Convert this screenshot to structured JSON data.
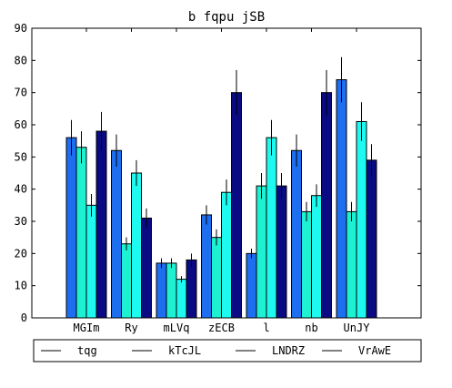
{
  "chart_data": {
    "type": "bar",
    "title": "b fqpu jSB",
    "xlabel": "",
    "ylabel": "",
    "ylim": [
      0,
      90
    ],
    "yticks": [
      0,
      10,
      20,
      30,
      40,
      50,
      60,
      70,
      80,
      90
    ],
    "categories": [
      "MGIm",
      "Ry",
      "mLVq",
      "zECB",
      "l",
      "nb",
      "UnJY"
    ],
    "series": [
      {
        "name": "tqg",
        "color": "#1e6ef0",
        "values": [
          56,
          52,
          17,
          32,
          20,
          52,
          74
        ],
        "errors": [
          5.5,
          5,
          1.5,
          3,
          1.5,
          5,
          7
        ]
      },
      {
        "name": "kTcJL",
        "color": "#1ef0d2",
        "values": [
          53,
          23,
          17,
          25,
          41,
          33,
          33
        ],
        "errors": [
          5,
          2,
          1.5,
          2.5,
          4,
          3,
          3
        ]
      },
      {
        "name": "LNDRZ",
        "color": "#1efaf0",
        "values": [
          35,
          45,
          12,
          39,
          56,
          38,
          61
        ],
        "errors": [
          3.5,
          4,
          1,
          4,
          5.5,
          3.5,
          6
        ]
      },
      {
        "name": "VrAwE",
        "color": "#0a0a82",
        "values": [
          58,
          31,
          18,
          70,
          41,
          70,
          49
        ],
        "errors": [
          6,
          3,
          2,
          7,
          4,
          7,
          5
        ]
      }
    ],
    "grid": false,
    "legend_position": "bottom"
  }
}
